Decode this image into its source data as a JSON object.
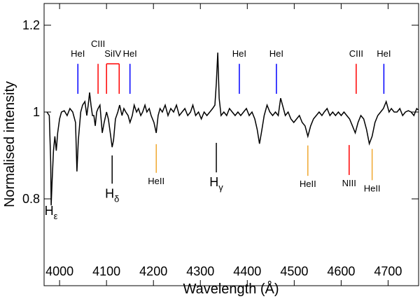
{
  "chart_data": {
    "type": "line",
    "xlabel": "Wavelength (Å)",
    "ylabel": "Normalised intensity",
    "color": "#000000",
    "xlim": [
      3967,
      4765
    ],
    "ylim": [
      0.6,
      1.25
    ],
    "xticks": [
      4000,
      4100,
      4200,
      4300,
      4400,
      4500,
      4600,
      4700
    ],
    "yticks": [
      0.8,
      1,
      1.2
    ],
    "x": [
      3973,
      3978,
      3981,
      3982,
      3984,
      3987,
      3990,
      3993,
      3996,
      4000,
      4004,
      4010,
      4016,
      4022,
      4028,
      4034,
      4037,
      4040,
      4045,
      4049,
      4054,
      4058,
      4061,
      4064,
      4067,
      4070,
      4073,
      4076,
      4079,
      4082,
      4086,
      4091,
      4095,
      4100,
      4104,
      4109,
      4112,
      4115,
      4119,
      4124,
      4128,
      4133,
      4137,
      4141,
      4146,
      4150,
      4155,
      4159,
      4164,
      4168,
      4173,
      4177,
      4182,
      4186,
      4191,
      4195,
      4201,
      4206,
      4210,
      4214,
      4219,
      4225,
      4231,
      4237,
      4243,
      4249,
      4255,
      4261,
      4267,
      4273,
      4279,
      4284,
      4290,
      4296,
      4302,
      4308,
      4314,
      4320,
      4326,
      4331,
      4334,
      4337,
      4340,
      4344,
      4350,
      4356,
      4362,
      4368,
      4374,
      4380,
      4386,
      4392,
      4398,
      4404,
      4410,
      4416,
      4421,
      4426,
      4430,
      4436,
      4442,
      4448,
      4454,
      4460,
      4466,
      4471,
      4475,
      4481,
      4487,
      4493,
      4499,
      4505,
      4511,
      4517,
      4523,
      4529,
      4535,
      4541,
      4547,
      4553,
      4559,
      4564,
      4570,
      4576,
      4582,
      4588,
      4594,
      4600,
      4606,
      4612,
      4618,
      4624,
      4630,
      4636,
      4642,
      4648,
      4654,
      4660,
      4666,
      4672,
      4678,
      4684,
      4690,
      4696,
      4702,
      4707,
      4713,
      4719,
      4725,
      4731,
      4737,
      4743,
      4749,
      4755,
      4761,
      4764
    ],
    "values": [
      1.0,
      0.992,
      0.887,
      0.785,
      0.839,
      0.911,
      0.944,
      0.911,
      0.952,
      0.984,
      1.0,
      1.003,
      0.992,
      1.008,
      1.0,
      0.976,
      0.863,
      0.935,
      1.0,
      1.016,
      1.024,
      0.992,
      1.016,
      1.045,
      1.016,
      0.992,
      0.992,
      0.968,
      1.0,
      1.008,
      1.016,
      0.952,
      0.976,
      1.0,
      0.984,
      0.944,
      0.919,
      0.935,
      0.984,
      1.0,
      1.016,
      0.992,
      1.008,
      1.0,
      0.992,
      0.976,
      0.992,
      1.016,
      1.0,
      1.008,
      0.992,
      1.0,
      1.016,
      1.0,
      1.008,
      0.992,
      0.976,
      0.952,
      0.992,
      1.008,
      1.0,
      1.016,
      0.992,
      1.008,
      1.0,
      1.016,
      0.992,
      1.0,
      1.008,
      0.992,
      1.0,
      1.016,
      0.992,
      1.0,
      0.984,
      1.0,
      0.992,
      1.0,
      1.008,
      1.016,
      1.065,
      1.137,
      1.032,
      0.992,
      1.0,
      0.992,
      1.008,
      1.0,
      0.992,
      1.0,
      0.992,
      1.0,
      1.008,
      0.992,
      1.0,
      0.984,
      0.96,
      0.927,
      0.952,
      0.992,
      1.016,
      1.0,
      0.992,
      1.0,
      0.992,
      1.032,
      1.016,
      0.992,
      1.0,
      0.984,
      0.976,
      0.984,
      0.992,
      0.976,
      0.968,
      0.944,
      0.968,
      0.984,
      0.992,
      1.0,
      0.992,
      1.0,
      1.008,
      0.992,
      1.0,
      0.992,
      1.0,
      0.992,
      1.0,
      0.992,
      0.984,
      0.968,
      0.952,
      0.976,
      0.992,
      0.984,
      0.96,
      0.927,
      0.944,
      0.976,
      0.992,
      1.0,
      1.008,
      1.024,
      1.0,
      1.008,
      1.0,
      1.0,
      1.008,
      0.992,
      1.0,
      1.003,
      1.0,
      0.992,
      1.008,
      1.005
    ],
    "annotations": [
      {
        "label": "HeI",
        "x": 4039,
        "y1": 1.111,
        "y2": 1.042,
        "color": "#0000ff"
      },
      {
        "label": "CIII",
        "x": 4082,
        "y1": 1.111,
        "y2": 1.042,
        "color": "#ff0000"
      },
      {
        "label": "SiIV",
        "x": [
          4100,
          4127
        ],
        "y1": 1.111,
        "y2": 1.042,
        "color": "#ff0000"
      },
      {
        "label": "HeI",
        "x": 4150,
        "y1": 1.111,
        "y2": 1.042,
        "color": "#0000ff"
      },
      {
        "label": "HeI",
        "x": 4383,
        "y1": 1.111,
        "y2": 1.042,
        "color": "#0000ff"
      },
      {
        "label": "HeI",
        "x": 4462,
        "y1": 1.111,
        "y2": 1.042,
        "color": "#0000ff"
      },
      {
        "label": "CIII",
        "x": 4632,
        "y1": 1.111,
        "y2": 1.042,
        "color": "#ff0000"
      },
      {
        "label": "HeI",
        "x": 4691,
        "y1": 1.111,
        "y2": 1.042,
        "color": "#0000ff"
      },
      {
        "label": "H",
        "sub": "δ",
        "x": 4112,
        "y1": 0.9,
        "y2": 0.835,
        "color": "#000000"
      },
      {
        "label": "HeII",
        "x": 4206,
        "y1": 0.926,
        "y2": 0.86,
        "color": "#f0a830"
      },
      {
        "label": "H",
        "sub": "γ",
        "x": 4334,
        "y1": 0.929,
        "y2": 0.861,
        "color": "#000000"
      },
      {
        "label": "HeII",
        "x": 4529,
        "y1": 0.923,
        "y2": 0.853,
        "color": "#f0a830"
      },
      {
        "label": "NIII",
        "x": 4617,
        "y1": 0.924,
        "y2": 0.855,
        "color": "#ff0000"
      },
      {
        "label": "HeII",
        "x": 4666,
        "y1": 0.915,
        "y2": 0.843,
        "color": "#f0a830"
      },
      {
        "label": "H",
        "sub": "ε",
        "x": 3982,
        "y": 0.763
      }
    ]
  }
}
